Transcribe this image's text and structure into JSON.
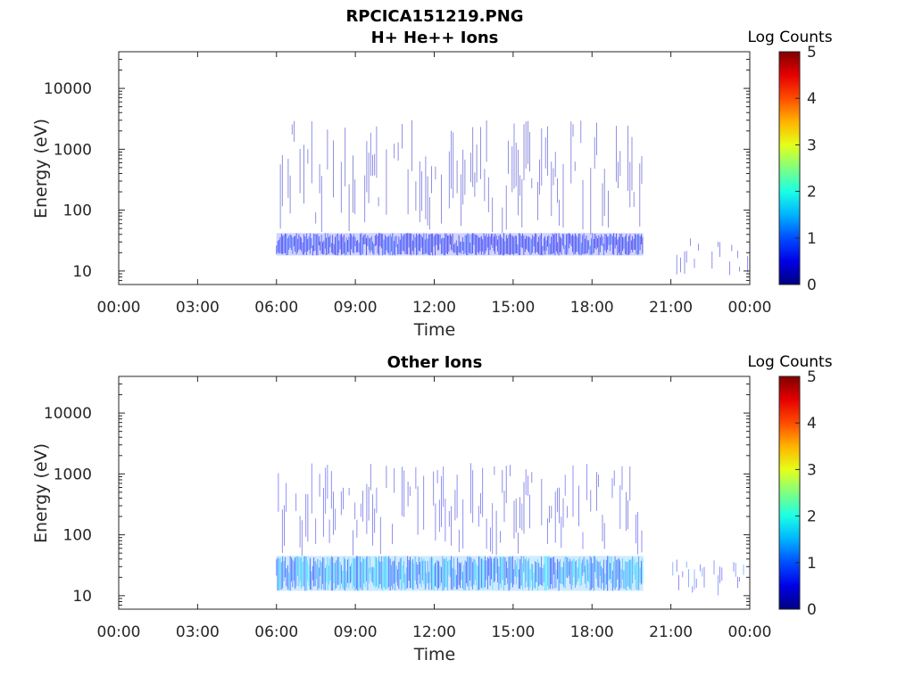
{
  "title": "RPCICA151219.PNG",
  "chart_data": [
    {
      "type": "heatmap",
      "title": "H+ He++ Ions",
      "xlabel": "Time",
      "ylabel": "Energy (eV)",
      "x_tick_labels": [
        "00:00",
        "03:00",
        "06:00",
        "09:00",
        "12:00",
        "15:00",
        "18:00",
        "21:00",
        "00:00"
      ],
      "y_tick_labels": [
        "10",
        "100",
        "1000",
        "10000"
      ],
      "y_scale": "log",
      "ylim": [
        6,
        40000
      ],
      "colorbar": {
        "label": "Log Counts",
        "ticks": [
          "0",
          "1",
          "2",
          "3",
          "4",
          "5"
        ],
        "range": [
          0,
          5
        ],
        "colormap": "jet"
      },
      "data_intervals_hours": [
        [
          6.0,
          19.95
        ],
        [
          21.0,
          24.0
        ]
      ],
      "bands": [
        {
          "hours": [
            6.0,
            19.95
          ],
          "energy_ev": [
            18,
            42
          ],
          "log_counts": 0.7
        },
        {
          "hours": [
            6.0,
            19.95
          ],
          "energy_ev": [
            40,
            3000
          ],
          "log_counts": 0.3,
          "sparse": true
        },
        {
          "hours": [
            21.0,
            24.0
          ],
          "energy_ev": [
            8,
            35
          ],
          "log_counts": 0.5,
          "sparse": true
        }
      ]
    },
    {
      "type": "heatmap",
      "title": "Other Ions",
      "xlabel": "Time",
      "ylabel": "Energy (eV)",
      "x_tick_labels": [
        "00:00",
        "03:00",
        "06:00",
        "09:00",
        "12:00",
        "15:00",
        "18:00",
        "21:00",
        "00:00"
      ],
      "y_tick_labels": [
        "10",
        "100",
        "1000",
        "10000"
      ],
      "y_scale": "log",
      "ylim": [
        6,
        40000
      ],
      "colorbar": {
        "label": "Log Counts",
        "ticks": [
          "0",
          "1",
          "2",
          "3",
          "4",
          "5"
        ],
        "range": [
          0,
          5
        ],
        "colormap": "jet"
      },
      "data_intervals_hours": [
        [
          6.0,
          19.95
        ],
        [
          21.0,
          24.0
        ]
      ],
      "bands": [
        {
          "hours": [
            6.0,
            19.95
          ],
          "energy_ev": [
            12,
            45
          ],
          "log_counts": 1.3
        },
        {
          "hours": [
            6.0,
            19.95
          ],
          "energy_ev": [
            45,
            1500
          ],
          "log_counts": 0.5,
          "sparse": true
        },
        {
          "hours": [
            21.0,
            24.0
          ],
          "energy_ev": [
            10,
            40
          ],
          "log_counts": 0.8,
          "sparse": true
        }
      ]
    }
  ]
}
